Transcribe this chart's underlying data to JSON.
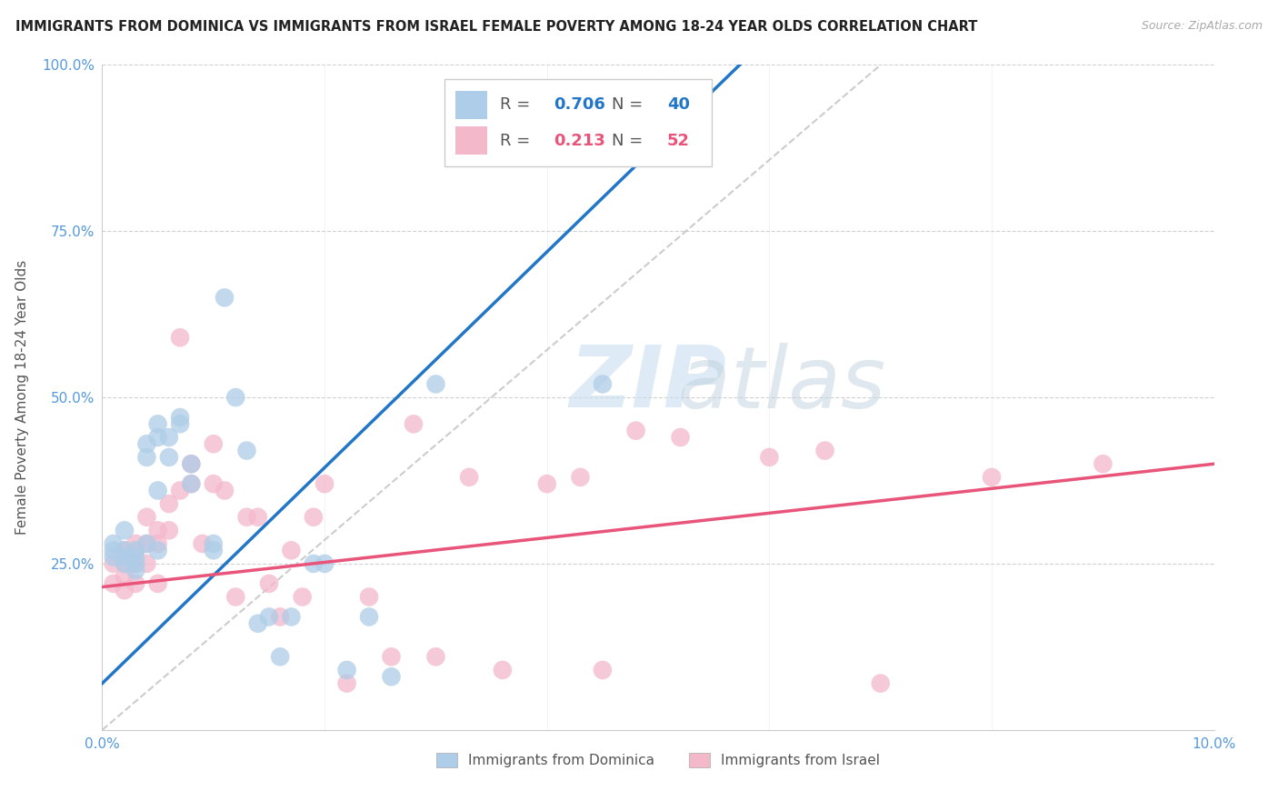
{
  "title": "IMMIGRANTS FROM DOMINICA VS IMMIGRANTS FROM ISRAEL FEMALE POVERTY AMONG 18-24 YEAR OLDS CORRELATION CHART",
  "source": "Source: ZipAtlas.com",
  "ylabel": "Female Poverty Among 18-24 Year Olds",
  "xlim": [
    0.0,
    0.1
  ],
  "ylim": [
    0.0,
    1.0
  ],
  "dominica_R": 0.706,
  "dominica_N": 40,
  "israel_R": 0.213,
  "israel_N": 52,
  "dominica_color": "#aecde8",
  "israel_color": "#f4b8cb",
  "dominica_line_color": "#2176c7",
  "israel_line_color": "#e8547a",
  "ref_line_color": "#c0c0c0",
  "watermark_zip": "ZIP",
  "watermark_atlas": "atlas",
  "dominica_x": [
    0.001,
    0.001,
    0.001,
    0.002,
    0.002,
    0.002,
    0.002,
    0.003,
    0.003,
    0.003,
    0.003,
    0.004,
    0.004,
    0.004,
    0.005,
    0.005,
    0.005,
    0.005,
    0.006,
    0.006,
    0.007,
    0.007,
    0.008,
    0.008,
    0.01,
    0.01,
    0.011,
    0.012,
    0.013,
    0.014,
    0.015,
    0.016,
    0.017,
    0.019,
    0.02,
    0.022,
    0.024,
    0.026,
    0.03,
    0.045
  ],
  "dominica_y": [
    0.28,
    0.27,
    0.26,
    0.3,
    0.27,
    0.26,
    0.25,
    0.27,
    0.26,
    0.25,
    0.24,
    0.43,
    0.41,
    0.28,
    0.46,
    0.44,
    0.36,
    0.27,
    0.44,
    0.41,
    0.47,
    0.46,
    0.4,
    0.37,
    0.28,
    0.27,
    0.65,
    0.5,
    0.42,
    0.16,
    0.17,
    0.11,
    0.17,
    0.25,
    0.25,
    0.09,
    0.17,
    0.08,
    0.52,
    0.52
  ],
  "israel_x": [
    0.001,
    0.001,
    0.002,
    0.002,
    0.002,
    0.002,
    0.003,
    0.003,
    0.003,
    0.003,
    0.004,
    0.004,
    0.004,
    0.005,
    0.005,
    0.005,
    0.006,
    0.006,
    0.007,
    0.007,
    0.008,
    0.008,
    0.009,
    0.01,
    0.01,
    0.011,
    0.012,
    0.013,
    0.014,
    0.015,
    0.016,
    0.017,
    0.018,
    0.019,
    0.02,
    0.022,
    0.024,
    0.026,
    0.028,
    0.03,
    0.033,
    0.036,
    0.04,
    0.043,
    0.045,
    0.048,
    0.052,
    0.06,
    0.065,
    0.07,
    0.08,
    0.09
  ],
  "israel_y": [
    0.25,
    0.22,
    0.27,
    0.25,
    0.23,
    0.21,
    0.28,
    0.27,
    0.25,
    0.22,
    0.32,
    0.28,
    0.25,
    0.3,
    0.28,
    0.22,
    0.34,
    0.3,
    0.59,
    0.36,
    0.4,
    0.37,
    0.28,
    0.43,
    0.37,
    0.36,
    0.2,
    0.32,
    0.32,
    0.22,
    0.17,
    0.27,
    0.2,
    0.32,
    0.37,
    0.07,
    0.2,
    0.11,
    0.46,
    0.11,
    0.38,
    0.09,
    0.37,
    0.38,
    0.09,
    0.45,
    0.44,
    0.41,
    0.42,
    0.07,
    0.38,
    0.4
  ],
  "dominica_line_x0": 0.0,
  "dominica_line_y0": 0.07,
  "dominica_line_x1": 0.045,
  "dominica_line_y1": 0.8,
  "israel_line_x0": 0.0,
  "israel_line_y0": 0.215,
  "israel_line_x1": 0.1,
  "israel_line_y1": 0.4
}
